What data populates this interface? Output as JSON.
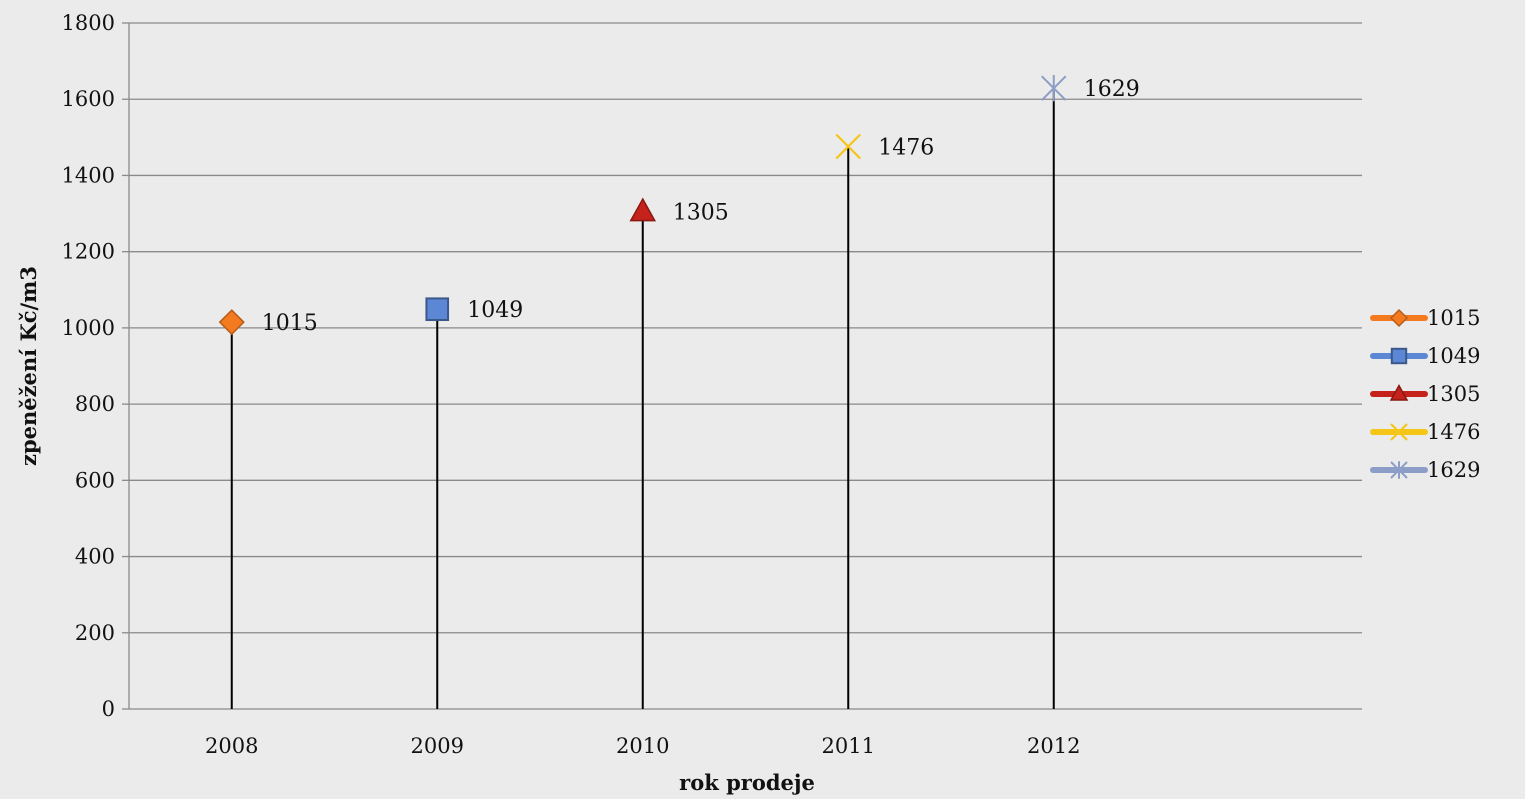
{
  "chart_data": {
    "type": "line",
    "title": "",
    "xlabel": "rok prodeje",
    "ylabel": "zpeněžení Kč/m3",
    "categories": [
      "2008",
      "2009",
      "2010",
      "2011",
      "2012"
    ],
    "ylim": [
      0,
      1800
    ],
    "yticks": [
      0,
      200,
      400,
      600,
      800,
      1000,
      1200,
      1400,
      1600,
      1800
    ],
    "grid": true,
    "drop_lines": true,
    "legend_position": "right",
    "series": [
      {
        "name": "1015",
        "category": "2008",
        "value": 1015,
        "marker": "diamond",
        "color": "#F47A20"
      },
      {
        "name": "1049",
        "category": "2009",
        "value": 1049,
        "marker": "square",
        "color": "#5B87D5"
      },
      {
        "name": "1305",
        "category": "2010",
        "value": 1305,
        "marker": "triangle",
        "color": "#C4221A"
      },
      {
        "name": "1476",
        "category": "2011",
        "value": 1476,
        "marker": "x",
        "color": "#F5C518"
      },
      {
        "name": "1629",
        "category": "2012",
        "value": 1629,
        "marker": "star",
        "color": "#8C9DC7"
      }
    ]
  }
}
